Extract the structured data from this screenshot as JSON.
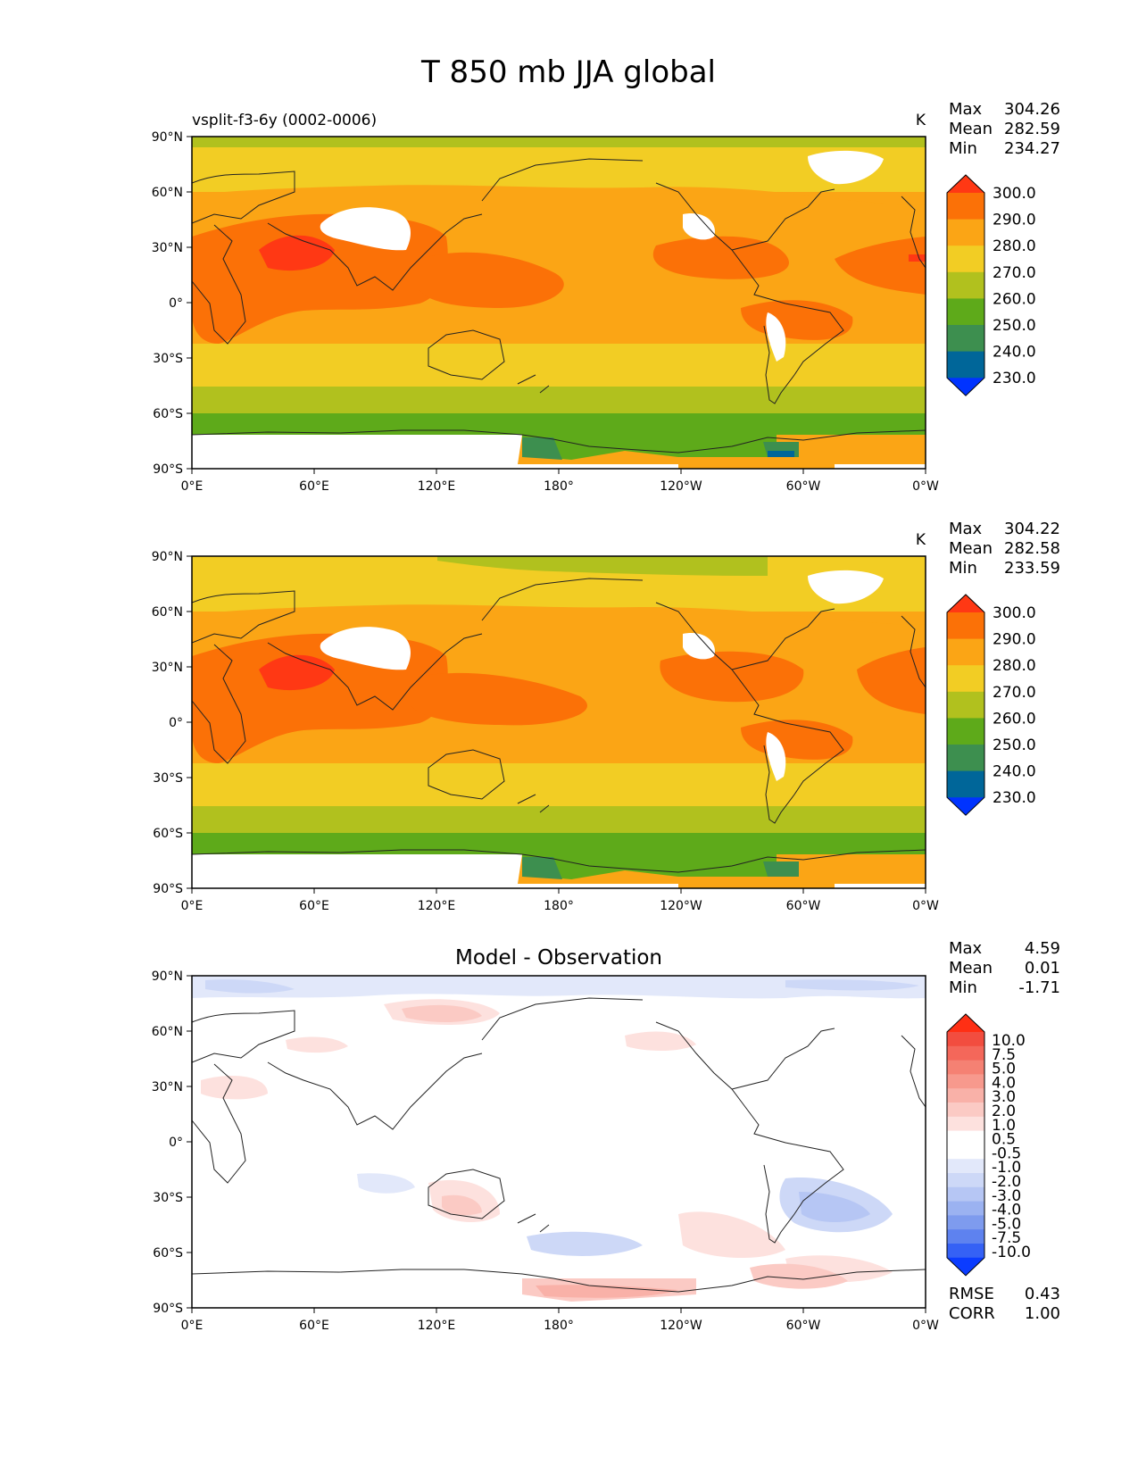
{
  "title": "T 850 mb JJA global",
  "lat_ticks": [
    "90°N",
    "60°N",
    "30°N",
    "0°",
    "30°S",
    "60°S",
    "90°S"
  ],
  "lon_ticks": [
    "0°E",
    "60°E",
    "120°E",
    "180°",
    "120°W",
    "60°W",
    "0°W"
  ],
  "colors": {
    "temp_bands": [
      "#0033ff",
      "#006699",
      "#3d8f4f",
      "#5eaa1a",
      "#b1c11e",
      "#f2cd24",
      "#fba515",
      "#fb7107",
      "#ff3814"
    ],
    "diff_bands": [
      "#0b3cff",
      "#3561f5",
      "#5e82ef",
      "#7e9bee",
      "#9bb2f1",
      "#b6c6f4",
      "#cdd8f7",
      "#e2e8fa",
      "#ffffff",
      "#ffffff",
      "#fde1de",
      "#fbcac4",
      "#f9b1a8",
      "#f7998d",
      "#f58173",
      "#f4675a",
      "#f24d3f",
      "#ff2f14"
    ],
    "no_data": "#ffffff"
  },
  "panels": [
    {
      "subtitle": "vsplit-f3-6y (0002-0006)",
      "units": "K",
      "stats": [
        {
          "label": "Max",
          "value": "304.26"
        },
        {
          "label": "Mean",
          "value": "282.59"
        },
        {
          "label": "Min",
          "value": "234.27"
        }
      ],
      "colorbar_labels": [
        "300.0",
        "290.0",
        "280.0",
        "270.0",
        "260.0",
        "250.0",
        "240.0",
        "230.0"
      ]
    },
    {
      "subtitle": "",
      "units": "K",
      "stats": [
        {
          "label": "Max",
          "value": "304.22"
        },
        {
          "label": "Mean",
          "value": "282.58"
        },
        {
          "label": "Min",
          "value": "233.59"
        }
      ],
      "colorbar_labels": [
        "300.0",
        "290.0",
        "280.0",
        "270.0",
        "260.0",
        "250.0",
        "240.0",
        "230.0"
      ]
    },
    {
      "title": "Model - Observation",
      "stats": [
        {
          "label": "Max",
          "value": "4.59"
        },
        {
          "label": "Mean",
          "value": "0.01"
        },
        {
          "label": "Min",
          "value": "-1.71"
        }
      ],
      "colorbar_labels": [
        "10.0",
        "7.5",
        "5.0",
        "4.0",
        "3.0",
        "2.0",
        "1.0",
        "0.5",
        "-0.5",
        "-1.0",
        "-2.0",
        "-3.0",
        "-4.0",
        "-5.0",
        "-7.5",
        "-10.0"
      ],
      "metrics": [
        {
          "label": "RMSE",
          "value": "0.43"
        },
        {
          "label": "CORR",
          "value": "1.00"
        }
      ]
    }
  ]
}
